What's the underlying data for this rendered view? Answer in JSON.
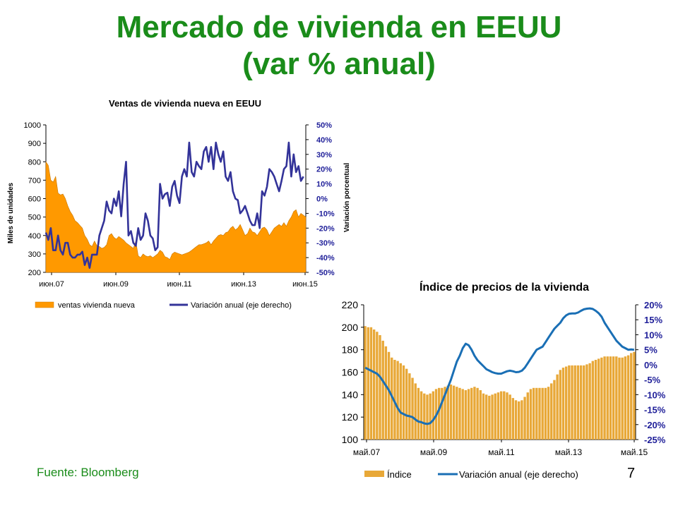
{
  "slide": {
    "title_line1": "Mercado de vivienda en EEUU",
    "title_line2": "(var % anual)",
    "source": "Fuente: Bloomberg",
    "page_number": "7",
    "title_color": "#1a8c1a"
  },
  "chart_data": [
    {
      "type": "area",
      "title": "Ventas de vivienda nueva en EEUU",
      "ylabel": "Miles de unidades",
      "y2label": "Variación porcentual",
      "ylim": [
        200,
        1000
      ],
      "y2lim": [
        -50,
        50
      ],
      "y_ticks": [
        "1000",
        "900",
        "800",
        "700",
        "600",
        "500",
        "400",
        "300",
        "200"
      ],
      "y2_ticks": [
        "50%",
        "40%",
        "30%",
        "20%",
        "10%",
        "0%",
        "-10%",
        "-20%",
        "-30%",
        "-40%",
        "-50%"
      ],
      "x_ticks": [
        "июн.07",
        "июн.09",
        "июн.11",
        "июн.13",
        "июн.15"
      ],
      "legend_position": "bottom",
      "colors": {
        "area": "#ff9900",
        "line": "#333399",
        "y2_axis_text": "#1f1f99"
      },
      "series": [
        {
          "name": "ventas vivienda nueva",
          "axis": "left",
          "values": [
            800,
            780,
            700,
            690,
            720,
            630,
            620,
            625,
            600,
            560,
            530,
            510,
            480,
            470,
            455,
            440,
            400,
            380,
            350,
            340,
            370,
            345,
            340,
            330,
            335,
            350,
            400,
            410,
            390,
            380,
            395,
            385,
            375,
            360,
            350,
            340,
            330,
            370,
            290,
            280,
            300,
            290,
            285,
            290,
            280,
            290,
            300,
            320,
            310,
            285,
            280,
            270,
            300,
            310,
            305,
            300,
            295,
            300,
            305,
            310,
            320,
            330,
            340,
            350,
            350,
            355,
            360,
            370,
            350,
            370,
            385,
            400,
            405,
            400,
            415,
            420,
            440,
            450,
            430,
            440,
            460,
            430,
            400,
            410,
            440,
            420,
            415,
            400,
            420,
            440,
            445,
            430,
            400,
            420,
            440,
            450,
            460,
            450,
            470,
            450,
            480,
            500,
            530,
            540,
            500,
            520,
            510,
            500
          ]
        },
        {
          "name": "Variación anual (eje derecho)",
          "axis": "right",
          "values": [
            -23,
            -28,
            -20,
            -35,
            -35,
            -25,
            -35,
            -38,
            -30,
            -30,
            -38,
            -40,
            -40,
            -38,
            -38,
            -36,
            -45,
            -40,
            -47,
            -38,
            -38,
            -38,
            -25,
            -20,
            -15,
            -2,
            -8,
            -10,
            0,
            -5,
            5,
            -12,
            10,
            25,
            -25,
            -22,
            -30,
            -32,
            -20,
            -28,
            -25,
            -10,
            -15,
            -25,
            -27,
            -35,
            -33,
            10,
            0,
            3,
            4,
            -5,
            8,
            12,
            2,
            -3,
            15,
            20,
            15,
            38,
            18,
            15,
            25,
            22,
            20,
            32,
            35,
            25,
            35,
            20,
            38,
            30,
            25,
            32,
            15,
            12,
            18,
            5,
            0,
            -1,
            -10,
            -8,
            -5,
            -10,
            -15,
            -18,
            -18,
            -10,
            -20,
            5,
            2,
            8,
            20,
            18,
            15,
            10,
            5,
            12,
            20,
            22,
            38,
            15,
            30,
            18,
            22,
            12,
            15
          ]
        }
      ]
    },
    {
      "type": "bar",
      "title": "Índice de precios de la vivienda",
      "ylim": [
        100,
        220
      ],
      "y2lim": [
        -25,
        20
      ],
      "y_ticks": [
        "220",
        "200",
        "180",
        "160",
        "140",
        "120",
        "100"
      ],
      "y2_ticks": [
        "20%",
        "15%",
        "10%",
        "5%",
        "0%",
        "-5%",
        "-10%",
        "-15%",
        "-20%",
        "-25%"
      ],
      "x_ticks": [
        "май.07",
        "май.09",
        "май.11",
        "май.13",
        "май.15"
      ],
      "legend_position": "bottom",
      "colors": {
        "bars": "#e8a838",
        "line": "#1a6fb5",
        "y2_axis_text": "#1f1f99"
      },
      "series": [
        {
          "name": "Índice",
          "axis": "left",
          "values": [
            201,
            200,
            200,
            198,
            196,
            193,
            188,
            183,
            178,
            173,
            171,
            170,
            168,
            166,
            163,
            159,
            155,
            150,
            146,
            143,
            141,
            140,
            141,
            143,
            145,
            146,
            146,
            147,
            148,
            149,
            148,
            147,
            146,
            145,
            144,
            145,
            146,
            147,
            146,
            144,
            141,
            140,
            139,
            140,
            141,
            142,
            143,
            143,
            142,
            140,
            137,
            135,
            134,
            135,
            138,
            142,
            145,
            146,
            146,
            146,
            146,
            146,
            147,
            150,
            153,
            158,
            162,
            164,
            165,
            166,
            166,
            166,
            166,
            166,
            166,
            167,
            168,
            170,
            171,
            172,
            173,
            174,
            174,
            174,
            174,
            174,
            173,
            173,
            174,
            175,
            177,
            178
          ]
        },
        {
          "name": "Variación anual (eje derecho)",
          "axis": "right",
          "values": [
            -1,
            -1.5,
            -2,
            -2.5,
            -3,
            -4,
            -5.5,
            -7,
            -8.5,
            -10.5,
            -12.5,
            -14.5,
            -16,
            -16.5,
            -17,
            -17.2,
            -17.5,
            -18.3,
            -19,
            -19.2,
            -19.6,
            -19.8,
            -19.5,
            -18.5,
            -17,
            -15,
            -12.5,
            -10,
            -7.5,
            -5,
            -2,
            1,
            3,
            5.5,
            7,
            6.5,
            5,
            3,
            1.5,
            0.5,
            -0.5,
            -1.5,
            -2,
            -2.5,
            -2.8,
            -3,
            -3,
            -2.6,
            -2.2,
            -2,
            -2.2,
            -2.5,
            -2.4,
            -2,
            -1,
            0.5,
            2,
            3.5,
            5,
            5.5,
            6,
            7.5,
            9,
            10.5,
            12,
            13,
            14,
            15.5,
            16.5,
            17,
            17.1,
            17.1,
            17.4,
            18,
            18.5,
            18.7,
            18.8,
            18.6,
            18,
            17.2,
            16,
            14,
            12.5,
            11,
            9.5,
            8,
            7,
            6,
            5.5,
            5,
            5.1,
            5
          ]
        }
      ]
    }
  ]
}
